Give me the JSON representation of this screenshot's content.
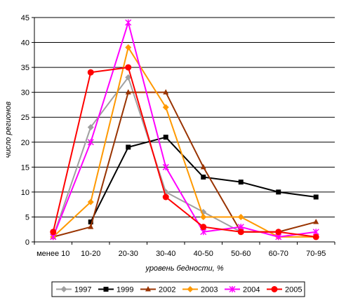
{
  "chart_data": {
    "type": "line",
    "title": "",
    "xlabel": "уровень бедности, %",
    "ylabel": "число регионов",
    "categories": [
      "менее 10",
      "10-20",
      "20-30",
      "30-40",
      "40-50",
      "50-60",
      "60-70",
      "70-95"
    ],
    "ylim": [
      0,
      45
    ],
    "yticks": [
      0,
      5,
      10,
      15,
      20,
      25,
      30,
      35,
      40,
      45
    ],
    "grid": "horizontal",
    "legend_position": "bottom",
    "series": [
      {
        "name": "1997",
        "color": "#a0a0a0",
        "marker": "diamond",
        "values": [
          1,
          23,
          33,
          10,
          6,
          2,
          2,
          null
        ]
      },
      {
        "name": "1999",
        "color": "#000000",
        "marker": "square",
        "values": [
          null,
          4,
          19,
          21,
          13,
          12,
          10,
          9
        ]
      },
      {
        "name": "2002",
        "color": "#993300",
        "marker": "triangle",
        "values": [
          1,
          3,
          30,
          30,
          15,
          2,
          2,
          4
        ]
      },
      {
        "name": "2003",
        "color": "#ff9900",
        "marker": "diamond",
        "values": [
          1,
          8,
          39,
          27,
          5,
          5,
          1,
          1
        ]
      },
      {
        "name": "2004",
        "color": "#ff00ff",
        "marker": "star",
        "values": [
          1,
          20,
          44,
          15,
          2,
          3,
          1,
          2
        ]
      },
      {
        "name": "2005",
        "color": "#ff0000",
        "marker": "circle",
        "values": [
          2,
          34,
          35,
          9,
          3,
          2,
          2,
          1
        ]
      }
    ]
  }
}
